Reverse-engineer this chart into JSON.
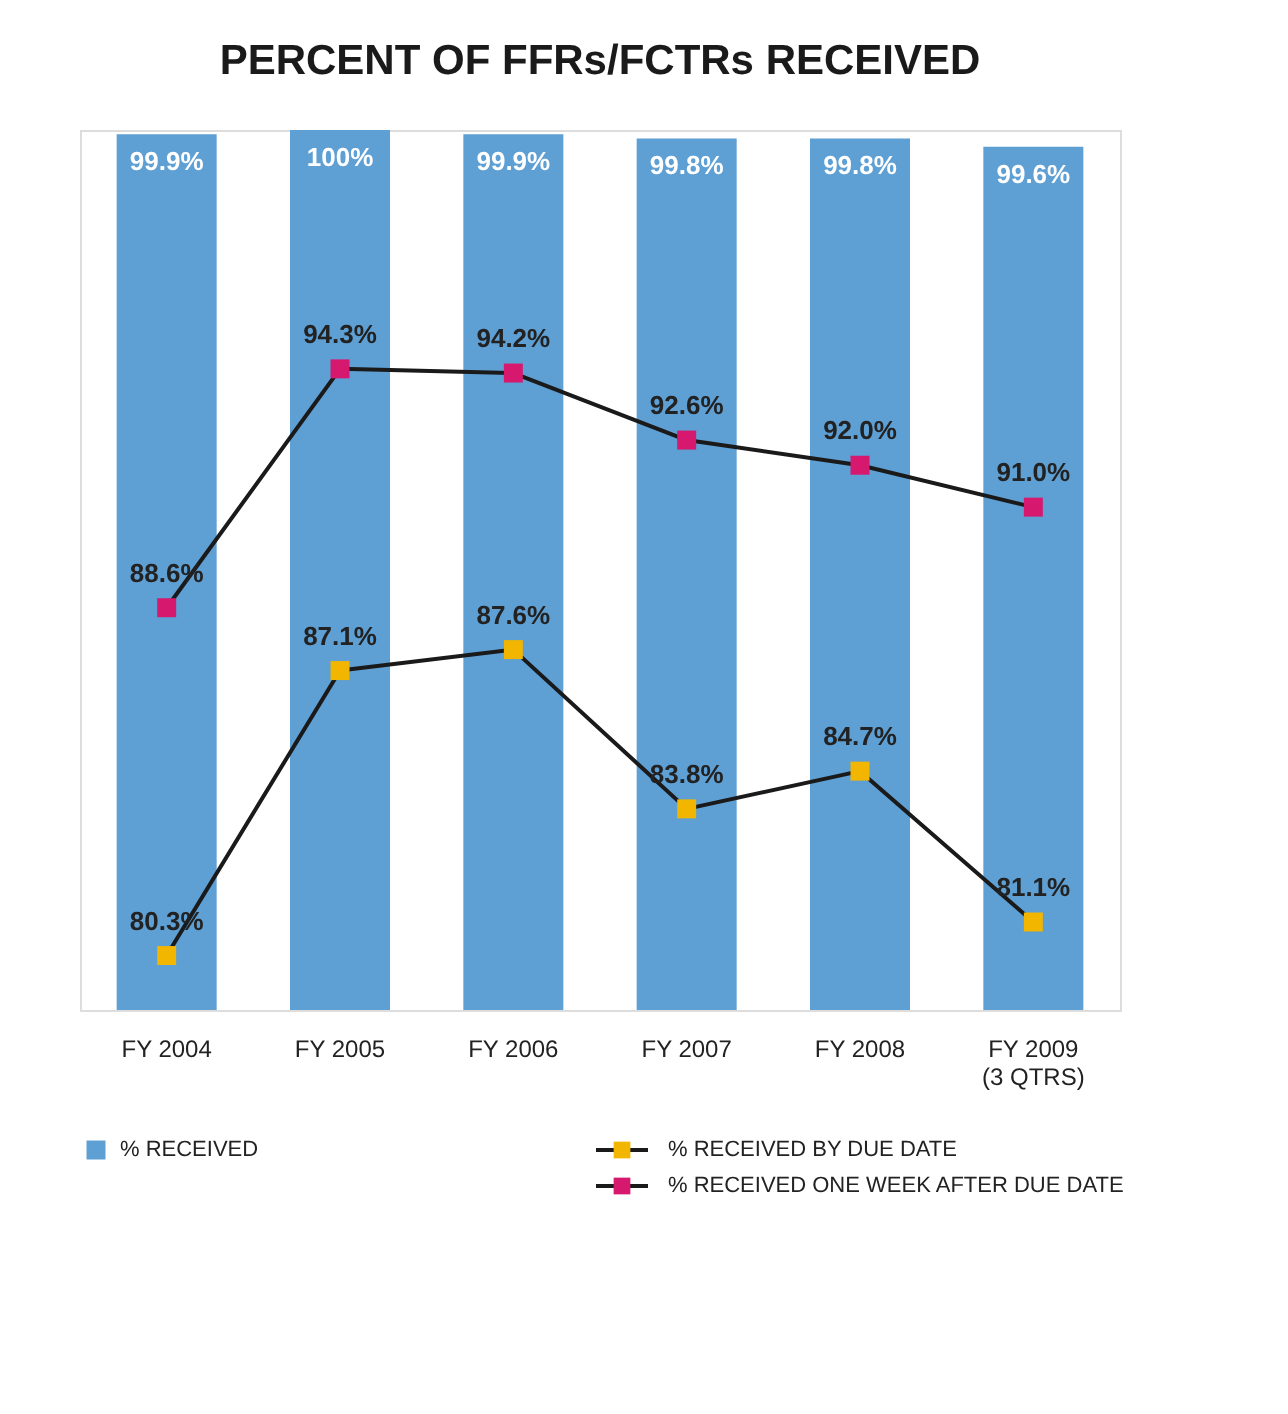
{
  "chart_data": {
    "type": "bar",
    "title": "PERCENT OF FFRs/FCTRs RECEIVED",
    "categories": [
      "FY 2004",
      "FY 2005",
      "FY 2006",
      "FY 2007",
      "FY 2008",
      "FY 2009\n(3 QTRS)"
    ],
    "series": [
      {
        "name": "% RECEIVED",
        "color": "#5e9fd4",
        "values": [
          99.9,
          100,
          99.9,
          99.8,
          99.8,
          99.6
        ],
        "value_labels": [
          "99.9%",
          "100%",
          "99.9%",
          "99.8%",
          "99.8%",
          "99.6%"
        ]
      },
      {
        "name": "% RECEIVED BY DUE DATE",
        "type": "line",
        "color": "#f2b600",
        "values": [
          80.3,
          87.1,
          87.6,
          83.8,
          84.7,
          81.1
        ],
        "value_labels": [
          "80.3%",
          "87.1%",
          "87.6%",
          "83.8%",
          "84.7%",
          "81.1%"
        ]
      },
      {
        "name": "% RECEIVED ONE WEEK AFTER DUE DATE",
        "type": "line",
        "color": "#d6186e",
        "values": [
          88.6,
          94.3,
          94.2,
          92.6,
          92.0,
          91.0
        ],
        "value_labels": [
          "88.6%",
          "94.3%",
          "94.2%",
          "92.6%",
          "92.0%",
          "91.0%"
        ]
      }
    ],
    "ylim": [
      79,
      100
    ],
    "tick_labels": "x",
    "grid": false,
    "legend": "bottom",
    "marker": "square",
    "line_style": "solid"
  }
}
